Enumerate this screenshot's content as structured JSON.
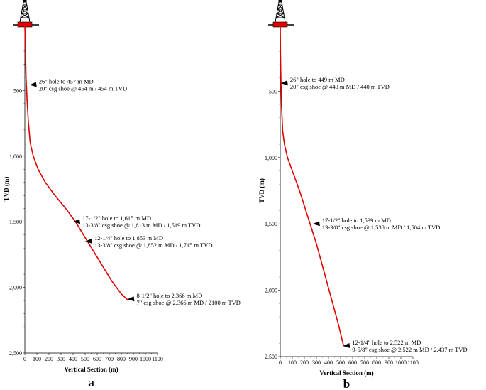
{
  "chart_data": [
    {
      "type": "line",
      "panel_label": "a",
      "xlabel": "Vertical Section (m)",
      "ylabel": "TVD (m)",
      "xlim": [
        0,
        1100
      ],
      "ylim": [
        0,
        2500
      ],
      "y_inverted": true,
      "xticks": [
        "0",
        "100",
        "200",
        "300",
        "400",
        "500",
        "600",
        "700",
        "800",
        "900",
        "1000",
        "1100"
      ],
      "yticks": [
        "500",
        "1,000",
        "1,500",
        "2,000",
        "2,500"
      ],
      "grid": false,
      "line_color": "#e00000",
      "series": [
        {
          "x": [
            0,
            5,
            10,
            20,
            30,
            45,
            70,
            110,
            170,
            250,
            340,
            420,
            520,
            620,
            720,
            800,
            860
          ],
          "y": [
            0,
            200,
            400,
            600,
            750,
            900,
            1000,
            1100,
            1200,
            1300,
            1400,
            1500,
            1650,
            1800,
            1950,
            2050,
            2100
          ]
        }
      ],
      "annotations": [
        {
          "x": 40,
          "y": 457,
          "lines": [
            "26\" hole to 457 m MD",
            "20\" csg shoe @ 454 m / 454 m TVD"
          ]
        },
        {
          "x": 400,
          "y": 1500,
          "lines": [
            "17-1/2\" hole to 1,615 m MD",
            "13-3/8\" csg shoe @ 1,613 m MD / 1,519 m TVD"
          ]
        },
        {
          "x": 500,
          "y": 1650,
          "lines": [
            "12-1/4\" hole to 1,853 m MD",
            "13-3/8\" csg shoe @ 1,852 m MD / 1,715 m TVD"
          ]
        },
        {
          "x": 850,
          "y": 2090,
          "lines": [
            "8-1/2\" hole to 2,366 m MD",
            "7\" csg shoe @ 2,366 m MD / 2100 m TVD"
          ]
        }
      ]
    },
    {
      "type": "line",
      "panel_label": "b",
      "xlabel": "Vertical Section (m)",
      "ylabel": "TVD (m)",
      "xlim": [
        0,
        1100
      ],
      "ylim": [
        0,
        2500
      ],
      "y_inverted": true,
      "xticks": [
        "0",
        "100",
        "200",
        "300",
        "400",
        "500",
        "600",
        "700",
        "800",
        "900",
        "1000",
        "1100"
      ],
      "yticks": [
        "500",
        "1,000",
        "1,500",
        "2,000",
        "2,500"
      ],
      "grid": false,
      "line_color": "#e00000",
      "series": [
        {
          "x": [
            0,
            2,
            5,
            10,
            20,
            35,
            60,
            100,
            160,
            230,
            300,
            360,
            420,
            480,
            525
          ],
          "y": [
            0,
            200,
            400,
            600,
            800,
            900,
            1000,
            1100,
            1250,
            1450,
            1650,
            1850,
            2050,
            2250,
            2420
          ]
        }
      ],
      "annotations": [
        {
          "x": 5,
          "y": 440,
          "lines": [
            "26\" hole to 449 m MD",
            "20\" csg shoe @ 440 m MD / 440 m TVD"
          ]
        },
        {
          "x": 270,
          "y": 1500,
          "lines": [
            "17-1/2\" hole to 1,539 m MD",
            "13-3/8\" csg shoe @ 1,538 m MD / 1,504 m TVD"
          ]
        },
        {
          "x": 520,
          "y": 2420,
          "lines": [
            "12-1/4\" hole to 2,522 m MD",
            "9-5/8\" csg shoe @ 2,522 m MD / 2,437 m TVD"
          ]
        }
      ]
    }
  ]
}
